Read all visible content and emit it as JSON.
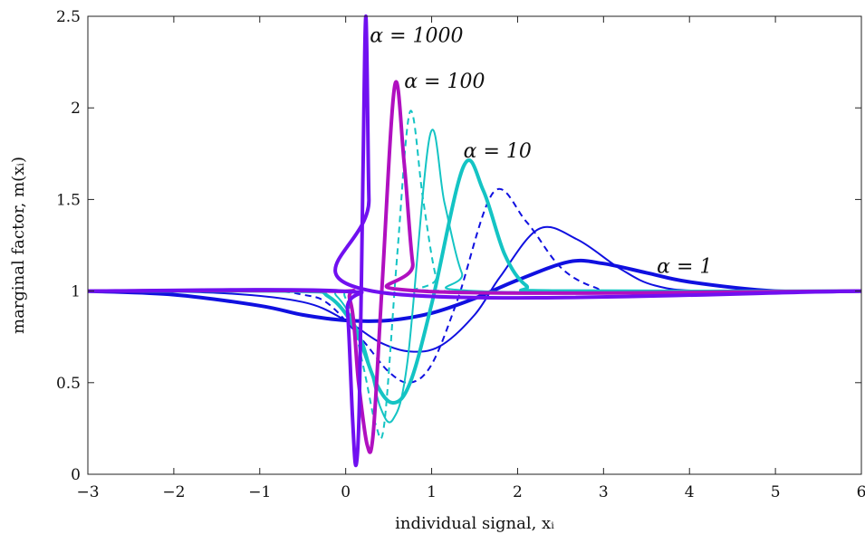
{
  "chart_data": {
    "type": "line",
    "title": "",
    "xlabel": "individual signal, xᵢ",
    "ylabel": "marginal factor, m(xᵢ)",
    "xlim": [
      -3,
      6
    ],
    "ylim": [
      0,
      2.5
    ],
    "x_ticks": [
      "−3",
      "−2",
      "−1",
      "0",
      "1",
      "2",
      "3",
      "4",
      "5",
      "6"
    ],
    "y_ticks": [
      "0",
      "0.5",
      "1",
      "1.5",
      "2",
      "2.5"
    ],
    "grid": false,
    "annotations": [
      {
        "text": "α = 1000"
      },
      {
        "text": "α = 100"
      },
      {
        "text": "α = 10"
      },
      {
        "text": "α = 1"
      }
    ],
    "series": [
      {
        "color": "#1010e0",
        "style": "solid-thick",
        "points": [
          [
            -3,
            1
          ],
          [
            -2,
            0.98
          ],
          [
            -1,
            0.92
          ],
          [
            -0.5,
            0.87
          ],
          [
            0,
            0.84
          ],
          [
            0.5,
            0.84
          ],
          [
            1,
            0.88
          ],
          [
            1.5,
            0.96
          ],
          [
            2,
            1.06
          ],
          [
            2.6,
            1.16
          ],
          [
            3,
            1.15
          ],
          [
            3.5,
            1.1
          ],
          [
            4,
            1.05
          ],
          [
            5,
            1.0
          ],
          [
            6,
            1.0
          ]
        ]
      },
      {
        "color": "#1010e0",
        "style": "solid-thin",
        "points": [
          [
            -3,
            1
          ],
          [
            -1.5,
            0.99
          ],
          [
            -0.5,
            0.94
          ],
          [
            0,
            0.84
          ],
          [
            0.4,
            0.72
          ],
          [
            0.75,
            0.67
          ],
          [
            1.1,
            0.7
          ],
          [
            1.5,
            0.87
          ],
          [
            1.8,
            1.08
          ],
          [
            2.25,
            1.34
          ],
          [
            2.7,
            1.28
          ],
          [
            3.2,
            1.12
          ],
          [
            3.6,
            1.03
          ],
          [
            4.2,
            1.0
          ],
          [
            6,
            1.0
          ]
        ]
      },
      {
        "color": "#1010e0",
        "style": "dashed",
        "points": [
          [
            -3,
            1
          ],
          [
            -1,
            1
          ],
          [
            -0.5,
            0.98
          ],
          [
            -0.2,
            0.93
          ],
          [
            0.2,
            0.73
          ],
          [
            0.5,
            0.56
          ],
          [
            0.75,
            0.5
          ],
          [
            1.0,
            0.6
          ],
          [
            1.3,
            0.95
          ],
          [
            1.72,
            1.54
          ],
          [
            2.1,
            1.38
          ],
          [
            2.5,
            1.13
          ],
          [
            2.9,
            1.02
          ],
          [
            3.3,
            1.0
          ],
          [
            6,
            1.0
          ]
        ]
      },
      {
        "color": "#14c4c4",
        "style": "solid-thick",
        "points": [
          [
            -3,
            1
          ],
          [
            -0.6,
            1
          ],
          [
            -0.2,
            0.97
          ],
          [
            0.1,
            0.8
          ],
          [
            0.35,
            0.5
          ],
          [
            0.55,
            0.39
          ],
          [
            0.75,
            0.5
          ],
          [
            1.0,
            0.93
          ],
          [
            1.37,
            1.68
          ],
          [
            1.6,
            1.55
          ],
          [
            1.85,
            1.2
          ],
          [
            2.1,
            1.03
          ],
          [
            2.4,
            1.0
          ],
          [
            6,
            1.0
          ]
        ]
      },
      {
        "color": "#14c4c4",
        "style": "solid-thin",
        "points": [
          [
            -3,
            1
          ],
          [
            -0.4,
            1
          ],
          [
            -0.1,
            0.97
          ],
          [
            0.2,
            0.72
          ],
          [
            0.4,
            0.37
          ],
          [
            0.55,
            0.3
          ],
          [
            0.72,
            0.62
          ],
          [
            0.98,
            1.85
          ],
          [
            1.15,
            1.48
          ],
          [
            1.35,
            1.1
          ],
          [
            1.55,
            1.0
          ],
          [
            6,
            1.0
          ]
        ]
      },
      {
        "color": "#14c4c4",
        "style": "dashed",
        "points": [
          [
            -3,
            1
          ],
          [
            -0.3,
            1
          ],
          [
            0,
            0.96
          ],
          [
            0.2,
            0.6
          ],
          [
            0.35,
            0.27
          ],
          [
            0.45,
            0.28
          ],
          [
            0.6,
            1.2
          ],
          [
            0.75,
            1.98
          ],
          [
            0.9,
            1.5
          ],
          [
            1.05,
            1.08
          ],
          [
            1.2,
            1.0
          ],
          [
            6,
            1.0
          ]
        ]
      },
      {
        "color": "#b010c0",
        "style": "solid-thick",
        "points": [
          [
            -3,
            1
          ],
          [
            -0.2,
            1
          ],
          [
            0.05,
            0.95
          ],
          [
            0.15,
            0.5
          ],
          [
            0.25,
            0.16
          ],
          [
            0.32,
            0.22
          ],
          [
            0.42,
            1.0
          ],
          [
            0.57,
            2.12
          ],
          [
            0.68,
            1.7
          ],
          [
            0.78,
            1.15
          ],
          [
            0.88,
            1.0
          ],
          [
            6,
            1.0
          ]
        ]
      },
      {
        "color": "#7010f0",
        "style": "solid-thick",
        "points": [
          [
            -3,
            1
          ],
          [
            -0.05,
            1
          ],
          [
            0.02,
            0.9
          ],
          [
            0.08,
            0.3
          ],
          [
            0.12,
            0.05
          ],
          [
            0.16,
            0.4
          ],
          [
            0.2,
            1.6
          ],
          [
            0.235,
            2.5
          ],
          [
            0.27,
            1.5
          ],
          [
            0.31,
            1.0
          ],
          [
            6,
            1.0
          ]
        ]
      }
    ]
  }
}
